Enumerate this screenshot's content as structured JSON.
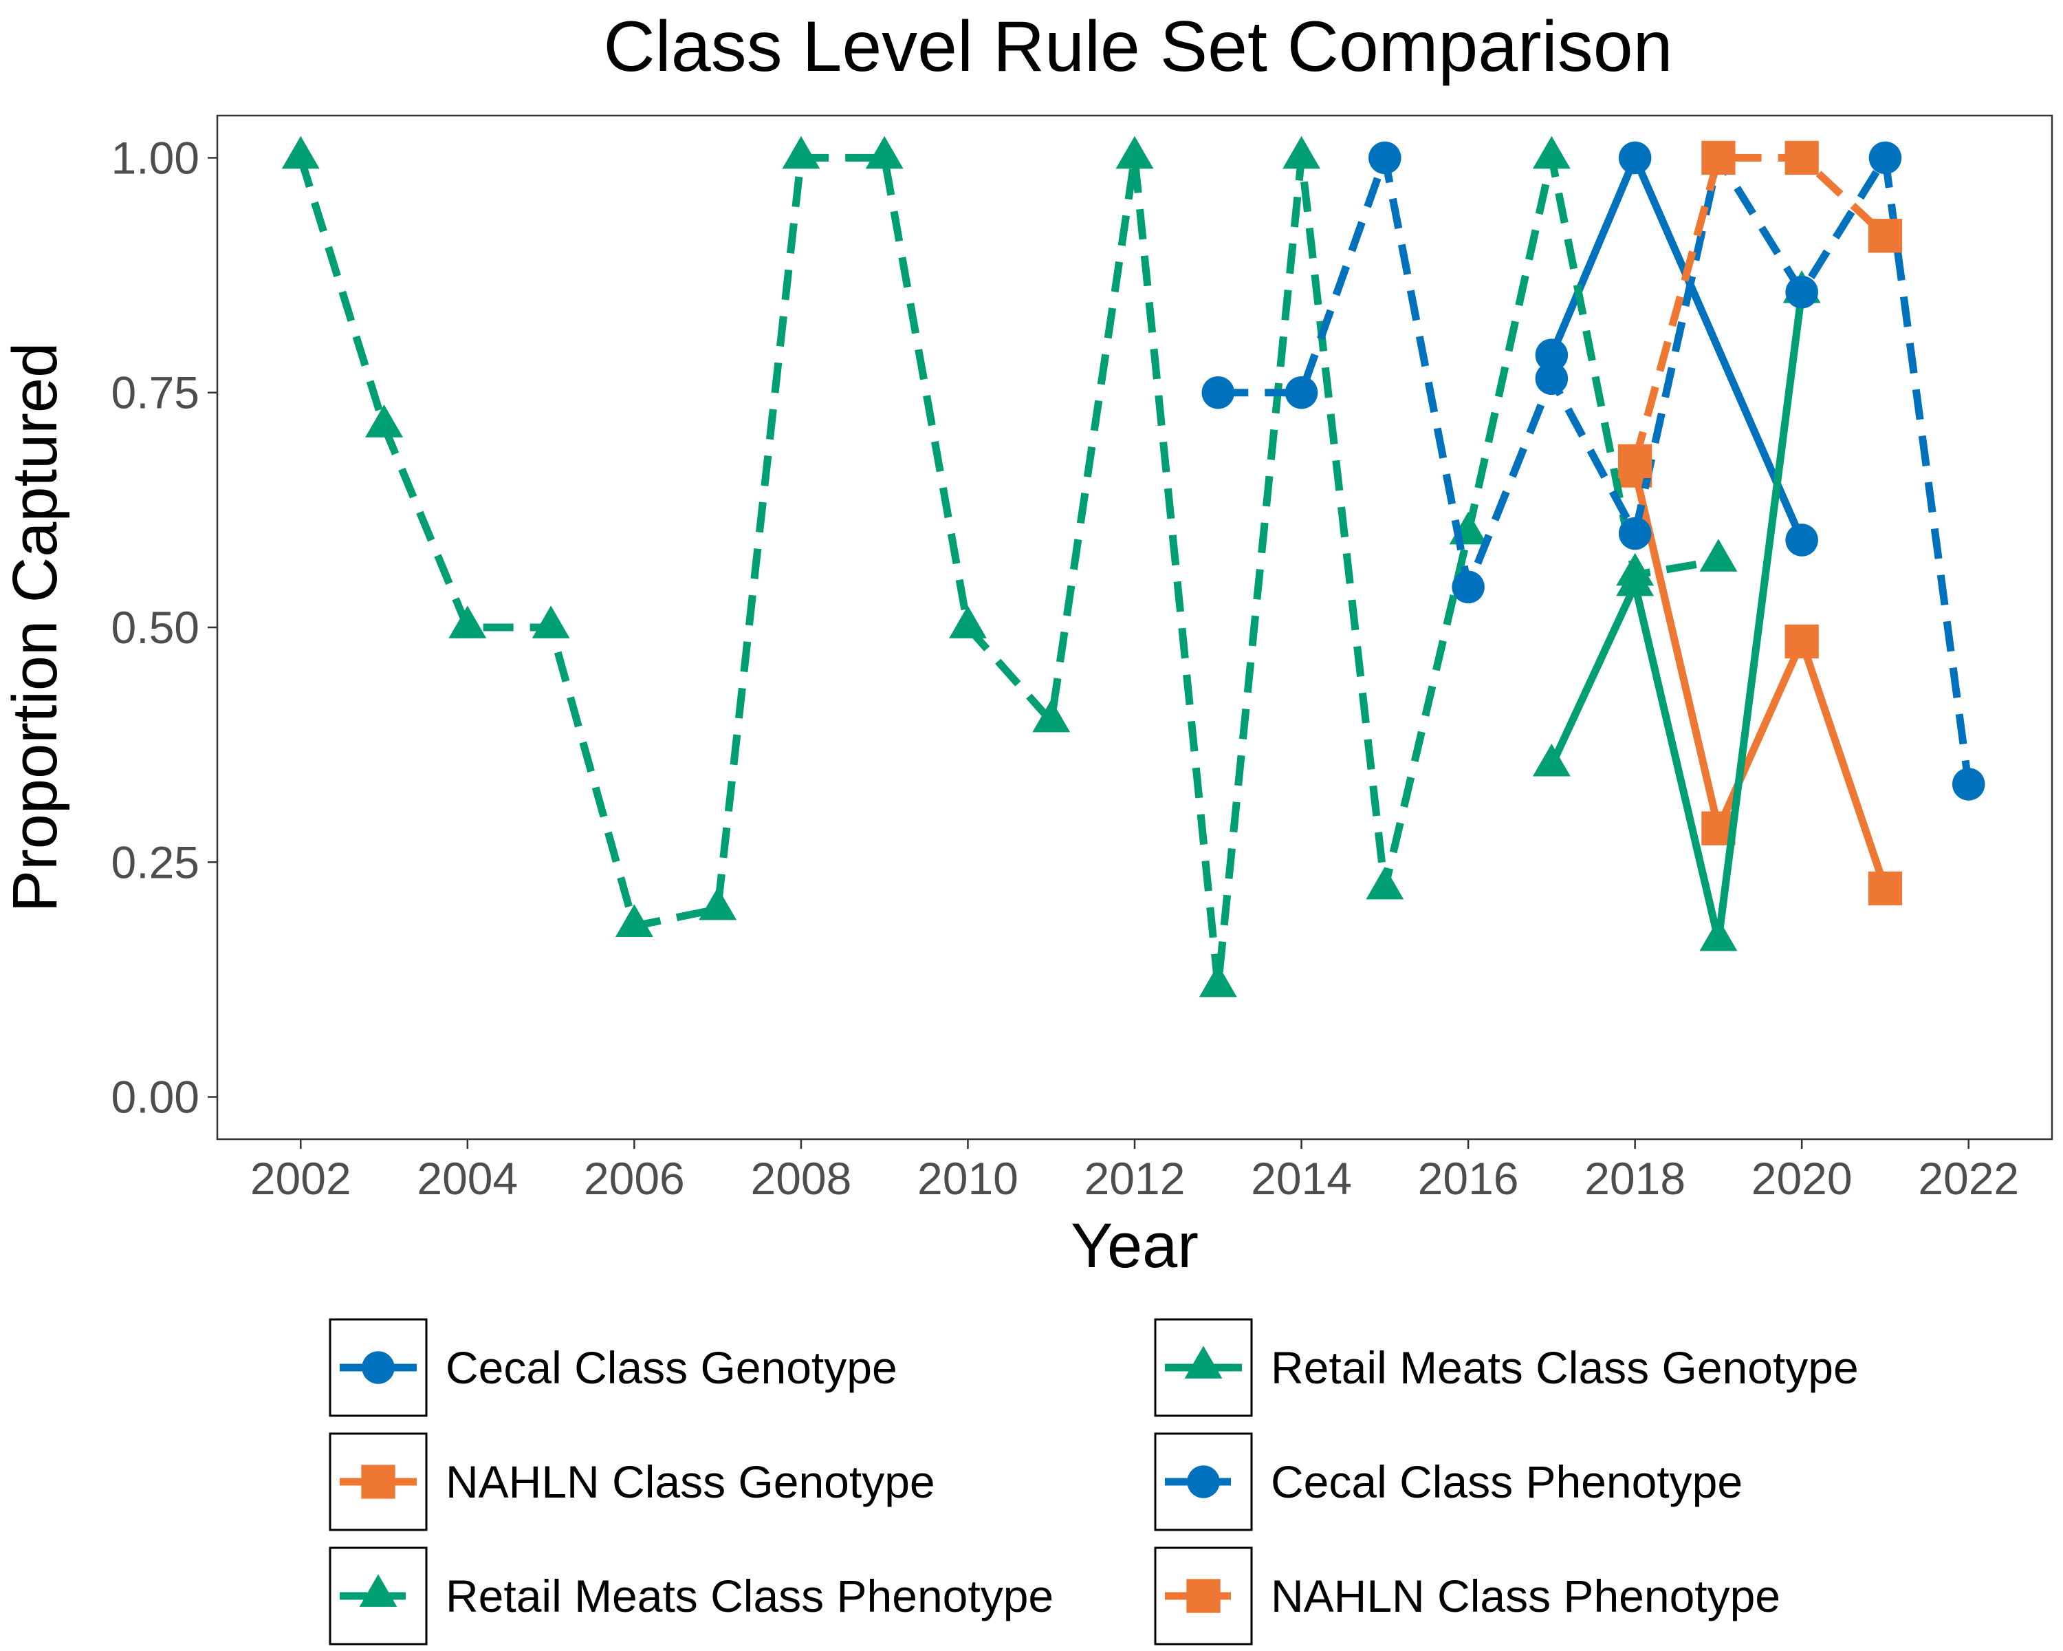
{
  "chart_data": {
    "type": "line",
    "title": "Class Level Rule Set Comparison",
    "xlabel": "Year",
    "ylabel": "Proportion Captured",
    "xlim": [
      2001,
      2023
    ],
    "ylim": [
      -0.045,
      1.045
    ],
    "x_ticks": [
      2002,
      2004,
      2006,
      2008,
      2010,
      2012,
      2014,
      2016,
      2018,
      2020,
      2022
    ],
    "y_ticks": [
      0.0,
      0.25,
      0.5,
      0.75,
      1.0
    ],
    "y_tick_labels": [
      "0.00",
      "0.25",
      "0.50",
      "0.75",
      "1.00"
    ],
    "x_tick_labels": [
      "2002",
      "2004",
      "2006",
      "2008",
      "2010",
      "2012",
      "2014",
      "2016",
      "2018",
      "2020",
      "2022"
    ],
    "grid": false,
    "legend_position": "bottom",
    "series": [
      {
        "name": "Cecal Class Genotype",
        "color": "#0072BD",
        "dash": "solid",
        "marker": "circle",
        "x": [
          2017,
          2018,
          2020
        ],
        "y": [
          0.79,
          1.0,
          0.593
        ]
      },
      {
        "name": "NAHLN Class Genotype",
        "color": "#EE7733",
        "dash": "solid",
        "marker": "square",
        "x": [
          2018,
          2019,
          2020,
          2021
        ],
        "y": [
          0.667,
          0.286,
          0.485,
          0.222
        ]
      },
      {
        "name": "Retail Meats Class Phenotype",
        "color": "#009E73",
        "dash": "dashed",
        "marker": "triangle",
        "x": [
          2002,
          2003,
          2004,
          2005,
          2006,
          2007,
          2008,
          2009,
          2010,
          2011,
          2012,
          2013,
          2014,
          2015,
          2016,
          2017,
          2018,
          2019
        ],
        "y": [
          1.0,
          0.714,
          0.5,
          0.5,
          0.182,
          0.2,
          1.0,
          1.0,
          0.5,
          0.4,
          1.0,
          0.118,
          1.0,
          0.222,
          0.6,
          1.0,
          0.556,
          0.571
        ]
      },
      {
        "name": "Retail Meats Class Genotype",
        "color": "#009E73",
        "dash": "solid",
        "marker": "triangle",
        "x": [
          2017,
          2018,
          2019,
          2020
        ],
        "y": [
          0.353,
          0.545,
          0.167,
          0.857
        ]
      },
      {
        "name": "Cecal Class Phenotype",
        "color": "#0072BD",
        "dash": "dashed",
        "marker": "circle",
        "x": [
          2013,
          2014,
          2015,
          2016,
          2017,
          2018,
          2019,
          2020,
          2021,
          2022
        ],
        "y": [
          0.75,
          0.75,
          1.0,
          0.543,
          0.765,
          0.6,
          1.0,
          0.857,
          1.0,
          0.333
        ]
      },
      {
        "name": "NAHLN Class Phenotype",
        "color": "#EE7733",
        "dash": "dashed",
        "marker": "square",
        "x": [
          2018,
          2019,
          2020,
          2021
        ],
        "y": [
          0.677,
          1.0,
          1.0,
          0.917
        ]
      }
    ],
    "legend_order": [
      0,
      3,
      1,
      4,
      2,
      5
    ]
  }
}
